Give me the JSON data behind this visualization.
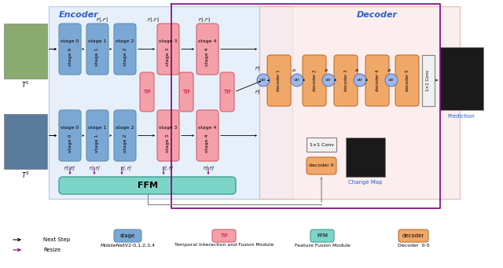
{
  "title": "",
  "bg_encoder": "#dce9f8",
  "bg_decoder": "#fce8e8",
  "bg_ffm": "#e0f5f0",
  "color_stage_blue": "#7ba7d4",
  "color_stage_pink": "#f4a0a8",
  "color_tif": "#f4a0a8",
  "color_ffm": "#7dd4c8",
  "color_decoder": "#f0a868",
  "color_conv": "#e8e8e8",
  "color_cat": "#a0b8e8",
  "color_prediction_bg": "#f0f0f0",
  "encoder_label": "Encoder",
  "decoder_label": "Decoder",
  "ffm_label": "FFM",
  "stage_labels": [
    "stage 0",
    "stage 1",
    "stage 2",
    "stage 3",
    "stage 4"
  ],
  "decoder_labels": [
    "decoder 1",
    "decoder 2",
    "decoder 3",
    "decoder 4",
    "decoder 5"
  ],
  "tif_label": "TIF",
  "conv_label": "1×1 Conv",
  "decoder0_label": "decoder 0",
  "change_map_label": "Change Map",
  "prediction_label": "Prediction",
  "next_step_label": "→ Next Step",
  "resize_label": "→ Resize",
  "legend_stage": "stage",
  "legend_tif": "TIF",
  "legend_ffm": "FFM",
  "legend_decoder": "decoder",
  "legend_mobilenet": "MobileNetV2-0,1,2,3,4",
  "legend_tif_desc": "Temporal Interaction and Fusion Module",
  "legend_ffm_desc": "Feature Fusion Module",
  "legend_decoder_desc": "Decoder  0-5"
}
